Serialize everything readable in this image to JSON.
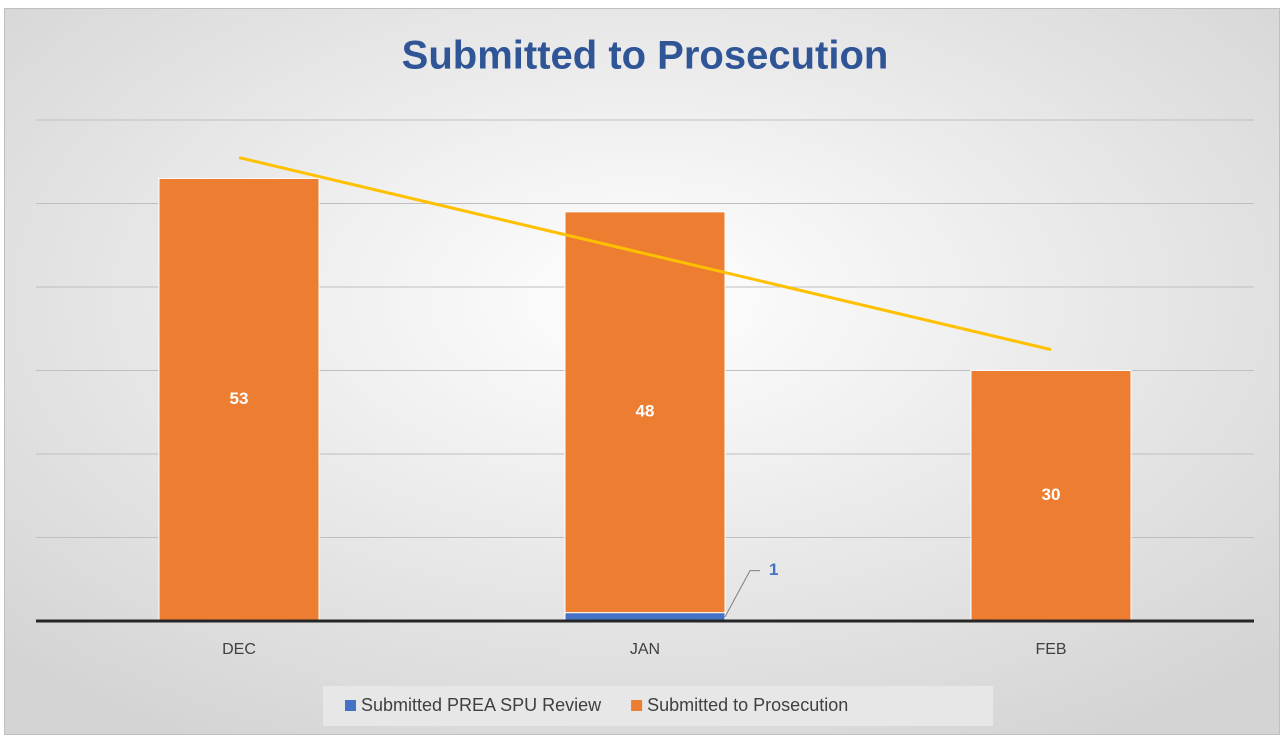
{
  "chart_data": {
    "type": "stacked_bar",
    "title": "Submitted to Prosecution",
    "categories": [
      "DEC",
      "JAN",
      "FEB"
    ],
    "series": [
      {
        "name": "Submitted PREA SPU Review",
        "color": "#4472c4",
        "values": [
          null,
          1,
          null
        ]
      },
      {
        "name": "Submitted to Prosecution",
        "color": "#ed7d31",
        "values": [
          53,
          48,
          30
        ]
      }
    ],
    "trendline": {
      "type": "linear",
      "color": "#ffc000"
    },
    "ylim": [
      0,
      60
    ],
    "yticks": [
      0,
      10,
      20,
      30,
      40,
      50,
      60
    ],
    "grid": true,
    "legend": "bottom"
  }
}
